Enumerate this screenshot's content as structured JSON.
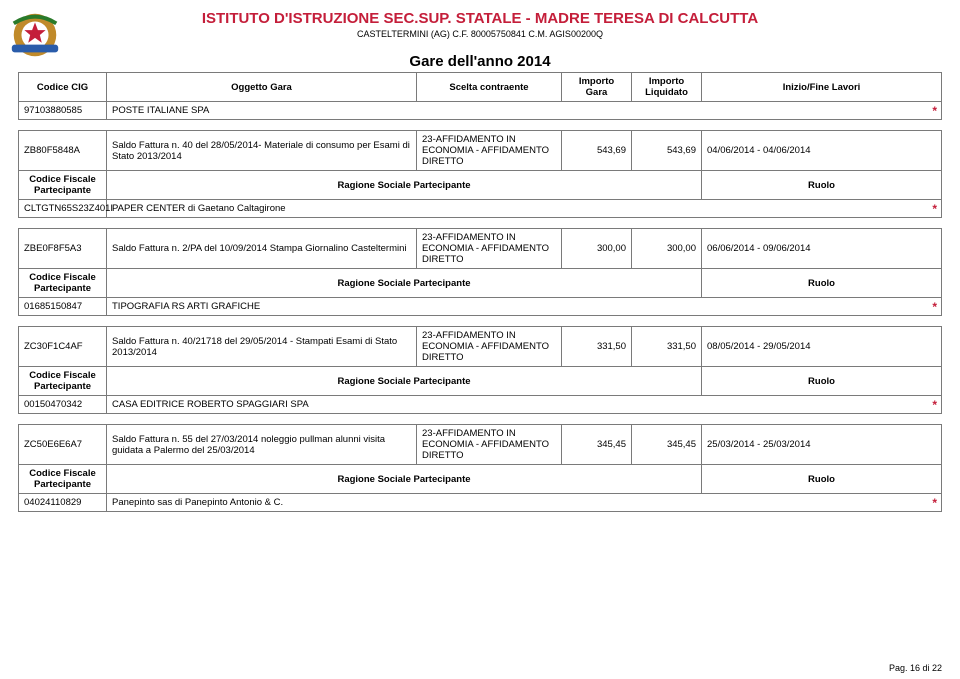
{
  "header": {
    "title": "ISTITUTO D'ISTRUZIONE SEC.SUP. STATALE - MADRE TERESA DI CALCUTTA",
    "subtitle": "CASTELTERMINI (AG) C.F. 80005750841 C.M. AGIS00200Q",
    "year_title": "Gare dell'anno 2014",
    "title_color": "#c41e3a",
    "star_color": "#c41e3a"
  },
  "columns": {
    "cig": "Codice CIG",
    "oggetto": "Oggetto Gara",
    "scelta": "Scelta contraente",
    "importo_gara": "Importo Gara",
    "importo_liq": "Importo Liquidato",
    "inizio_fine": "Inizio/Fine Lavori",
    "cf_part": "Codice Fiscale Partecipante",
    "ragione": "Ragione Sociale Partecipante",
    "ruolo": "Ruolo"
  },
  "top_row": {
    "cf": "97103880585",
    "rs": "POSTE ITALIANE SPA"
  },
  "blocks": [
    {
      "cig": "ZB80F5848A",
      "oggetto": "Saldo Fattura n. 40 del 28/05/2014- Materiale di consumo per Esami di Stato 2013/2014",
      "scelta": "23-AFFIDAMENTO IN ECONOMIA - AFFIDAMENTO DIRETTO",
      "imp_gara": "543,69",
      "imp_liq": "543,69",
      "date": "04/06/2014 - 04/06/2014",
      "cf": "CLTGTN65S23Z401I",
      "rs": "PAPER CENTER di Gaetano Caltagirone"
    },
    {
      "cig": "ZBE0F8F5A3",
      "oggetto": "Saldo Fattura n. 2/PA del 10/09/2014 Stampa Giornalino Casteltermini",
      "scelta": "23-AFFIDAMENTO IN ECONOMIA - AFFIDAMENTO DIRETTO",
      "imp_gara": "300,00",
      "imp_liq": "300,00",
      "date": "06/06/2014 - 09/06/2014",
      "cf": "01685150847",
      "rs": "TIPOGRAFIA RS ARTI GRAFICHE"
    },
    {
      "cig": "ZC30F1C4AF",
      "oggetto": "Saldo Fattura n. 40/21718 del 29/05/2014 - Stampati Esami di Stato 2013/2014",
      "scelta": "23-AFFIDAMENTO IN ECONOMIA - AFFIDAMENTO DIRETTO",
      "imp_gara": "331,50",
      "imp_liq": "331,50",
      "date": "08/05/2014 - 29/05/2014",
      "cf": "00150470342",
      "rs": "CASA EDITRICE ROBERTO SPAGGIARI SPA"
    },
    {
      "cig": "ZC50E6E6A7",
      "oggetto": "Saldo Fattura n. 55 del 27/03/2014 noleggio pullman alunni visita guidata a Palermo del 25/03/2014",
      "scelta": "23-AFFIDAMENTO IN ECONOMIA - AFFIDAMENTO DIRETTO",
      "imp_gara": "345,45",
      "imp_liq": "345,45",
      "date": "25/03/2014 - 25/03/2014",
      "cf": "04024110829",
      "rs": "Panepinto sas di Panepinto Antonio & C."
    }
  ],
  "footer": {
    "page": "Pag. 16 di 22"
  }
}
